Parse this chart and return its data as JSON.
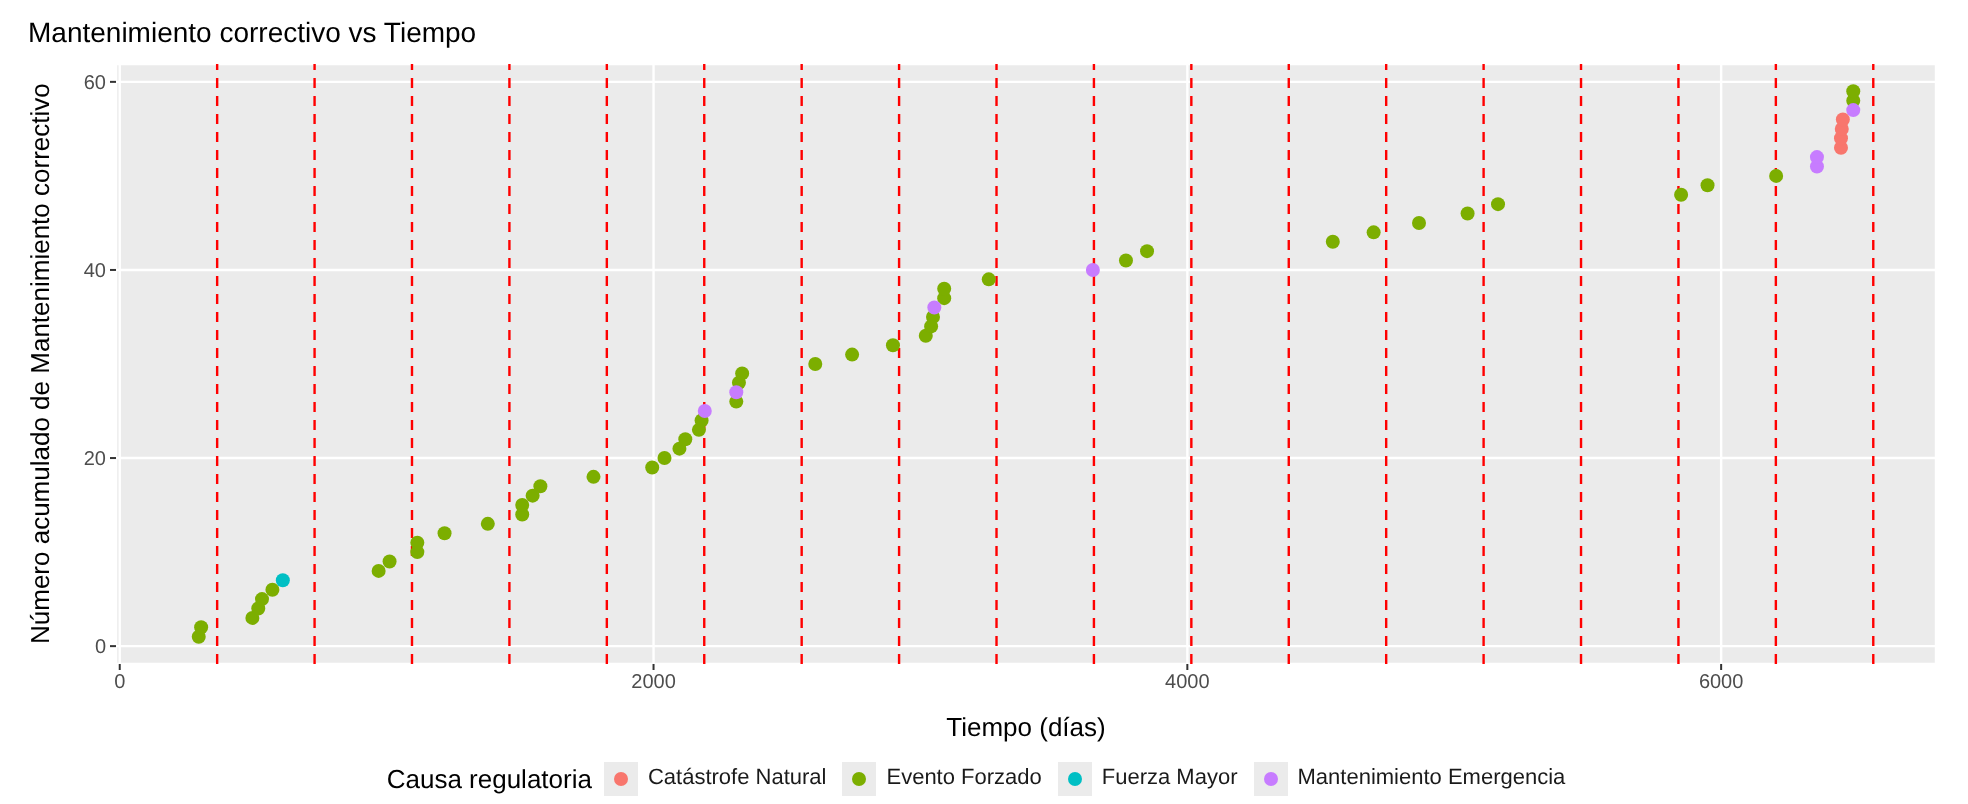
{
  "chart_data": {
    "type": "scatter",
    "title": "Mantenimiento correctivo vs Tiempo",
    "xlabel": "Tiempo (días)",
    "ylabel": "Número acumulado de Mantenimiento correctivo",
    "legend_title": "Causa regulatoria",
    "legend": "bottom",
    "grid": true,
    "marker": "circle",
    "xlim": [
      -14,
      6805
    ],
    "xticks": [
      0,
      2000,
      4000,
      6000
    ],
    "ylim": [
      -1.9,
      61.9
    ],
    "yticks": [
      0,
      20,
      40,
      60
    ],
    "series": [
      {
        "name": "Catástrofe Natural",
        "color": "#f8766d",
        "x": [
          6449,
          6449,
          6452,
          6456
        ],
        "values": [
          53,
          54,
          55,
          56
        ]
      },
      {
        "name": "Evento Forzado",
        "color": "#7cae00",
        "x": [
          296,
          305,
          497,
          519,
          533,
          572,
          970,
          1011,
          1115,
          1115,
          1217,
          1379,
          1508,
          1508,
          1547,
          1576,
          1775,
          1995,
          2041,
          2097,
          2119,
          2170,
          2180,
          2310,
          2320,
          2332,
          2606,
          2744,
          2897,
          3020,
          3040,
          3047,
          3089,
          3089,
          3256,
          3770,
          3849,
          4545,
          4698,
          4868,
          5050,
          5164,
          5850,
          5949,
          6206,
          6495,
          6495
        ],
        "values": [
          1,
          2,
          3,
          4,
          5,
          6,
          8,
          9,
          10,
          11,
          12,
          13,
          14,
          15,
          16,
          17,
          18,
          19,
          20,
          21,
          22,
          23,
          24,
          26,
          28,
          29,
          30,
          31,
          32,
          33,
          34,
          35,
          37,
          38,
          39,
          41,
          42,
          43,
          44,
          45,
          46,
          47,
          48,
          49,
          50,
          58,
          59
        ]
      },
      {
        "name": "Fuerza Mayor",
        "color": "#00bfc4",
        "x": [
          611
        ],
        "values": [
          7
        ]
      },
      {
        "name": "Mantenimiento Emergencia",
        "color": "#c77cff",
        "x": [
          2192,
          2310,
          3052,
          3646,
          6359,
          6359,
          6495
        ],
        "values": [
          25,
          27,
          36,
          40,
          51,
          52,
          57
        ]
      }
    ],
    "ref_lines": [
      {
        "axis": "x",
        "value": 365,
        "color": "#ff0000",
        "line_style": "dashed"
      },
      {
        "axis": "x",
        "value": 730,
        "color": "#ff0000",
        "line_style": "dashed"
      },
      {
        "axis": "x",
        "value": 1095,
        "color": "#ff0000",
        "line_style": "dashed"
      },
      {
        "axis": "x",
        "value": 1460,
        "color": "#ff0000",
        "line_style": "dashed"
      },
      {
        "axis": "x",
        "value": 1825,
        "color": "#ff0000",
        "line_style": "dashed"
      },
      {
        "axis": "x",
        "value": 2190,
        "color": "#ff0000",
        "line_style": "dashed"
      },
      {
        "axis": "x",
        "value": 2555,
        "color": "#ff0000",
        "line_style": "dashed"
      },
      {
        "axis": "x",
        "value": 2920,
        "color": "#ff0000",
        "line_style": "dashed"
      },
      {
        "axis": "x",
        "value": 3285,
        "color": "#ff0000",
        "line_style": "dashed"
      },
      {
        "axis": "x",
        "value": 3650,
        "color": "#ff0000",
        "line_style": "dashed"
      },
      {
        "axis": "x",
        "value": 4015,
        "color": "#ff0000",
        "line_style": "dashed"
      },
      {
        "axis": "x",
        "value": 4380,
        "color": "#ff0000",
        "line_style": "dashed"
      },
      {
        "axis": "x",
        "value": 4745,
        "color": "#ff0000",
        "line_style": "dashed"
      },
      {
        "axis": "x",
        "value": 5110,
        "color": "#ff0000",
        "line_style": "dashed"
      },
      {
        "axis": "x",
        "value": 5475,
        "color": "#ff0000",
        "line_style": "dashed"
      },
      {
        "axis": "x",
        "value": 5840,
        "color": "#ff0000",
        "line_style": "dashed"
      },
      {
        "axis": "x",
        "value": 6205,
        "color": "#ff0000",
        "line_style": "dashed"
      },
      {
        "axis": "x",
        "value": 6570,
        "color": "#ff0000",
        "line_style": "dashed"
      }
    ]
  }
}
